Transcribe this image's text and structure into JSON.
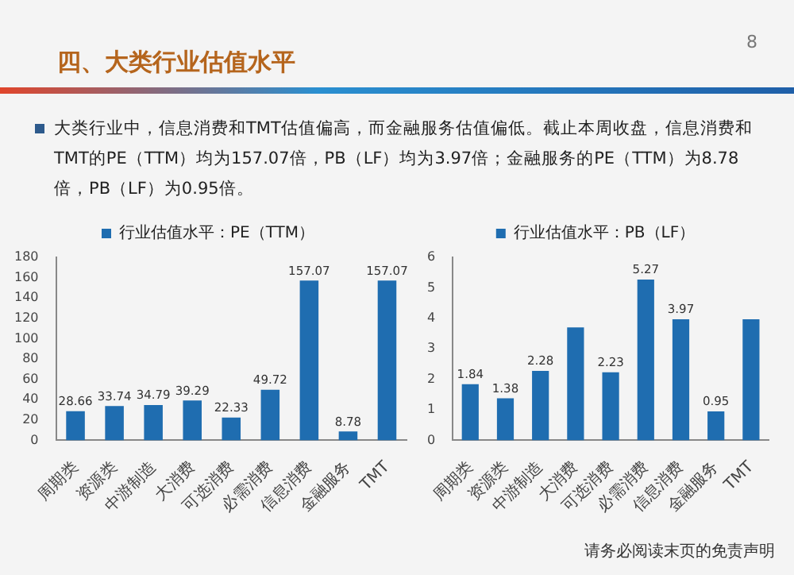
{
  "chart_data": [
    {
      "type": "other",
      "title": "四、大类行业估值水平",
      "annotations": [
        "大类行业中，信息消费和TMT估值偏高，而金融服务估值偏低。截止本周收盘，信息消费和TMT的PE（TTM）均为157.07倍，PB（LF）均为3.97倍；金融服务的PE（TTM）为8.78倍，PB（LF）为0.95倍。",
        "8",
        "请务必阅读末页的免责声明"
      ]
    },
    {
      "type": "bar",
      "categories": [
        "周期类",
        "资源类",
        "中游制造",
        "大消费",
        "可选消费",
        "必需消费",
        "信息消费",
        "金融服务",
        "TMT"
      ],
      "series": [
        {
          "name": "行业估值水平：PE（TTM）",
          "color": "#1f6db0",
          "values": [
            28.66,
            33.74,
            34.79,
            39.29,
            22.33,
            49.72,
            157.07,
            8.78,
            157.07
          ]
        }
      ],
      "ylim": [
        0,
        180
      ],
      "yticks": [
        0,
        20,
        40,
        60,
        80,
        100,
        120,
        140,
        160,
        180
      ],
      "data_labels": true,
      "legend": "top"
    },
    {
      "type": "bar",
      "categories": [
        "周期类",
        "资源类",
        "中游制造",
        "大消费",
        "可选消费",
        "必需消费",
        "信息消费",
        "金融服务",
        "TMT"
      ],
      "series": [
        {
          "name": "行业估值水平：PB（LF）",
          "color": "#1f6db0",
          "values": [
            1.84,
            1.38,
            2.28,
            3.7,
            2.23,
            5.27,
            3.97,
            0.95,
            3.97
          ],
          "value_labels": [
            "1.84",
            "1.38",
            "2.28",
            null,
            "2.23",
            "5.27",
            "3.97",
            "0.95",
            null
          ]
        }
      ],
      "ylim": [
        0,
        6
      ],
      "yticks": [
        0,
        1,
        2,
        3,
        4,
        5,
        6
      ],
      "legend": "top"
    }
  ]
}
